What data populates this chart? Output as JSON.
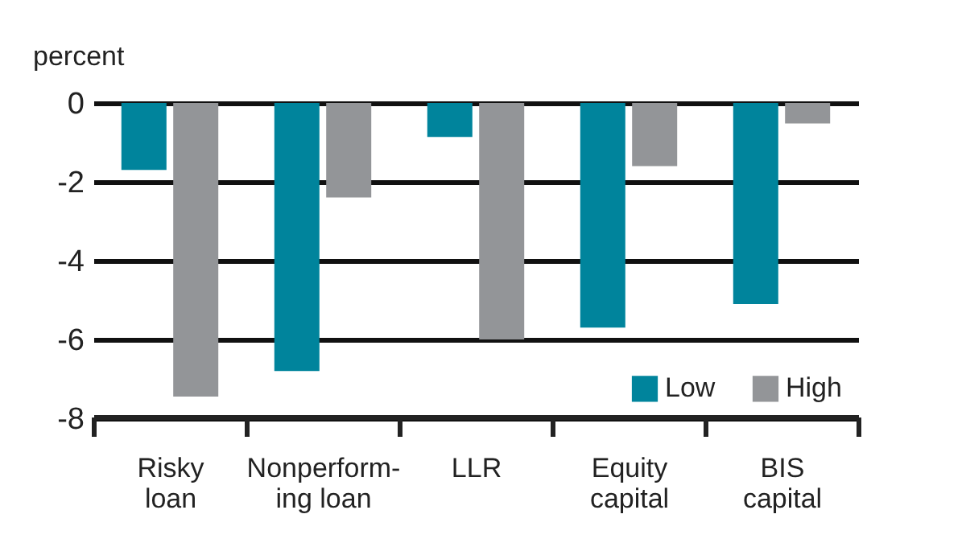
{
  "chart_data": {
    "type": "bar",
    "ylabel": "percent",
    "categories": [
      "Risky\nloan",
      "Nonperform-\ning loan",
      "LLR",
      "Equity\ncapital",
      "BIS\ncapital"
    ],
    "series": [
      {
        "name": "Low",
        "color": "#00849c",
        "values": [
          -1.7,
          -6.8,
          -0.86,
          -5.7,
          -5.1
        ]
      },
      {
        "name": "High",
        "color": "#939598",
        "values": [
          -7.45,
          -2.4,
          -6.0,
          -1.6,
          -0.52
        ]
      }
    ],
    "ylim": [
      -8,
      0
    ],
    "yticks": [
      -8,
      -6,
      -4,
      -2,
      0
    ],
    "grid": "y",
    "legend": "bottom right"
  }
}
